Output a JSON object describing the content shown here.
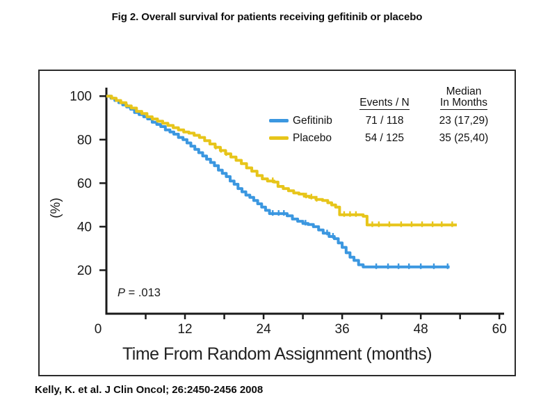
{
  "title": "Fig 2. Overall survival for patients receiving gefitinib or placebo",
  "citation": "Kelly, K. et al. J Clin Oncol; 26:2450-2456 2008",
  "p_value": {
    "label": "P",
    "rest": " = .013"
  },
  "colors": {
    "gefitinib": "#3B97E0",
    "placebo": "#E7C51A",
    "axis": "#1a1a1a",
    "frame": "#2b2b2b",
    "text": "#111111"
  },
  "chart_data": {
    "type": "line",
    "subtype": "kaplan-meier-step",
    "title": "Fig 2. Overall survival for patients receiving gefitinib or placebo",
    "xlabel": "Time From Random Assignment (months)",
    "ylabel": "(%)",
    "xlim": [
      0,
      60
    ],
    "ylim": [
      0,
      100
    ],
    "x_ticks_major": [
      0,
      12,
      24,
      36,
      48,
      60
    ],
    "x_ticks_minor": [
      6,
      18,
      30,
      42,
      54
    ],
    "y_ticks": [
      20,
      40,
      60,
      80,
      100
    ],
    "grid": false,
    "legend_position": "upper right",
    "annotation_p_value": "P = .013",
    "legend": {
      "events_header": "Events / N",
      "median_header_line1": "Median",
      "median_header_line2": "In Months",
      "rows": [
        {
          "name": "Gefitinib",
          "events_n": "71 / 118",
          "median": "23 (17,29)",
          "color": "#3B97E0"
        },
        {
          "name": "Placebo",
          "events_n": "54 / 125",
          "median": "35 (25,40)",
          "color": "#E7C51A"
        }
      ]
    },
    "series": [
      {
        "name": "Gefitinib",
        "color": "#3B97E0",
        "points": [
          [
            0,
            100
          ],
          [
            0.7,
            99
          ],
          [
            1.3,
            98
          ],
          [
            1.9,
            97
          ],
          [
            2.5,
            96
          ],
          [
            3.1,
            95
          ],
          [
            3.7,
            94
          ],
          [
            4.3,
            92.5
          ],
          [
            5,
            91.5
          ],
          [
            5.7,
            90.5
          ],
          [
            6.3,
            89.5
          ],
          [
            7,
            88
          ],
          [
            7.7,
            87
          ],
          [
            8.3,
            86
          ],
          [
            9,
            84.5
          ],
          [
            9.7,
            83.5
          ],
          [
            10.3,
            82.5
          ],
          [
            11,
            81
          ],
          [
            11.7,
            80
          ],
          [
            12.3,
            78.5
          ],
          [
            12.9,
            77
          ],
          [
            13.5,
            75.5
          ],
          [
            14.1,
            74
          ],
          [
            14.7,
            72.5
          ],
          [
            15.3,
            71
          ],
          [
            15.9,
            69.5
          ],
          [
            16.5,
            68
          ],
          [
            17.1,
            66
          ],
          [
            17.7,
            64.5
          ],
          [
            18.3,
            63
          ],
          [
            18.9,
            61
          ],
          [
            19.5,
            59.5
          ],
          [
            20.1,
            57.5
          ],
          [
            20.7,
            56
          ],
          [
            21.3,
            54.5
          ],
          [
            21.9,
            53.5
          ],
          [
            22.5,
            52
          ],
          [
            23.1,
            50.5
          ],
          [
            23.7,
            49
          ],
          [
            24.3,
            47.5
          ],
          [
            24.9,
            46
          ],
          [
            27.6,
            45
          ],
          [
            28.4,
            43.5
          ],
          [
            29.2,
            42.5
          ],
          [
            30,
            41.5
          ],
          [
            30.8,
            41
          ],
          [
            31.6,
            40
          ],
          [
            32.4,
            38.5
          ],
          [
            33.1,
            37
          ],
          [
            34,
            35.5
          ],
          [
            34.8,
            34.5
          ],
          [
            35.4,
            32.5
          ],
          [
            36,
            30.5
          ],
          [
            36.6,
            28
          ],
          [
            37.2,
            26
          ],
          [
            37.8,
            24.5
          ],
          [
            38.5,
            22.5
          ],
          [
            39.2,
            21.5
          ],
          [
            52.4,
            21.5
          ]
        ],
        "censor_marks": [
          25.4,
          26.3,
          27.1,
          30.4,
          33.7,
          34.6,
          41.2,
          43,
          44.6,
          46.2,
          48,
          50,
          52.1
        ]
      },
      {
        "name": "Placebo",
        "color": "#E7C51A",
        "points": [
          [
            0,
            100
          ],
          [
            0.8,
            99
          ],
          [
            1.5,
            98
          ],
          [
            2.2,
            97
          ],
          [
            3,
            95.5
          ],
          [
            3.8,
            94.5
          ],
          [
            4.6,
            93
          ],
          [
            5.4,
            92
          ],
          [
            6.2,
            90.5
          ],
          [
            7,
            89.5
          ],
          [
            7.8,
            88.5
          ],
          [
            8.6,
            87.5
          ],
          [
            9.4,
            86.5
          ],
          [
            10.2,
            85.5
          ],
          [
            11,
            84.5
          ],
          [
            11.8,
            83.5
          ],
          [
            12.6,
            83
          ],
          [
            13.4,
            82
          ],
          [
            14.2,
            81
          ],
          [
            15,
            79.5
          ],
          [
            15.8,
            78
          ],
          [
            16.6,
            76.5
          ],
          [
            17.4,
            75
          ],
          [
            18.2,
            73.5
          ],
          [
            19,
            72
          ],
          [
            19.8,
            70.5
          ],
          [
            20.6,
            69
          ],
          [
            21.4,
            67
          ],
          [
            22.2,
            65.5
          ],
          [
            23,
            63.5
          ],
          [
            23.8,
            62
          ],
          [
            24.6,
            61
          ],
          [
            25.6,
            60.5
          ],
          [
            26.2,
            58.5
          ],
          [
            27,
            57.5
          ],
          [
            27.8,
            56.5
          ],
          [
            28.6,
            55.5
          ],
          [
            29.4,
            55
          ],
          [
            30.2,
            54
          ],
          [
            31,
            53.5
          ],
          [
            32,
            52.5
          ],
          [
            33,
            52
          ],
          [
            33.8,
            51
          ],
          [
            34.4,
            50
          ],
          [
            35,
            49
          ],
          [
            35.6,
            45.5
          ],
          [
            39.2,
            44.8
          ],
          [
            39.8,
            40.8
          ],
          [
            53.5,
            40.8
          ]
        ],
        "censor_marks": [
          16.7,
          17.5,
          18.3,
          25.4,
          30.5,
          31.3,
          32.1,
          36.3,
          37.2,
          38.1,
          40.6,
          41.6,
          43.2,
          45,
          46.6,
          48.2,
          49.8,
          51.2,
          52.8
        ]
      }
    ]
  }
}
